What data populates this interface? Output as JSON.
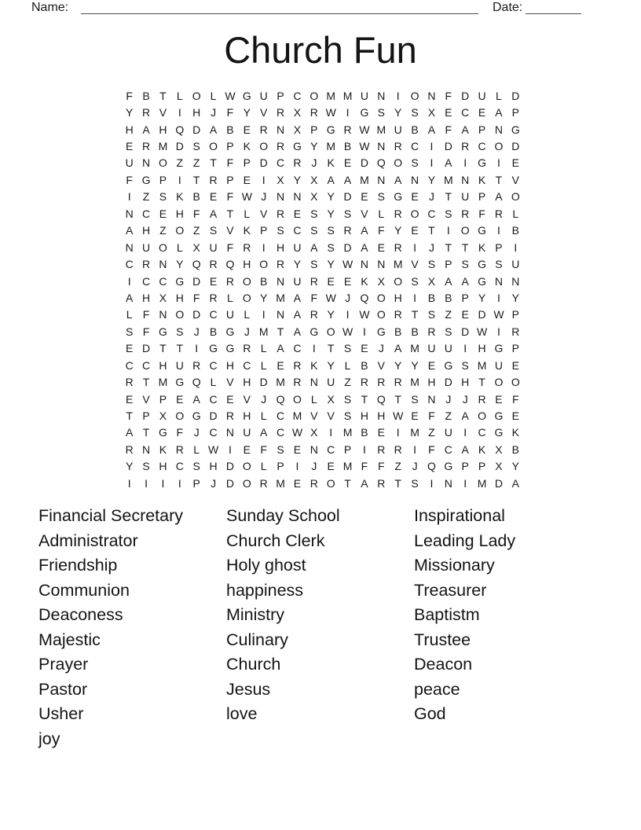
{
  "header": {
    "name_label": "Name:",
    "date_label": "Date:"
  },
  "title": "Church Fun",
  "colors": {
    "background": "#ffffff",
    "ink": "#1a1a1a",
    "blank_line": "#4a4a4a"
  },
  "grid": {
    "rows_count": 24,
    "cols_count": 24,
    "rows": [
      "FBTLOLWGUPCOMMUNIONFDULD",
      "YRVIHJFYVRXRWIGSYSXECEAP",
      "HAHQDABERNXPGRWMUBAFAPNG",
      "ERMDSOPKORGYMBWNRCIDRCOD",
      "UNOZZTFPDCRJKEDQOSIAIGIE",
      "FGPITRPEIXYXAAMNANYMNKTV",
      "IZSKBEFWJNNXYDESGEJTUPAO",
      "NCEHFATLVRESYSVLROCSRFRL",
      "AHZOZSVKPSCSSRAFYETIOGIB",
      "NUOLXUFRIHUASDAERIJTTKPI",
      "CRNYQRQHORYSYWNNMVSPSGSU",
      "ICCGDEROBNUREEKXOSXAAGNN",
      "AHXHFRLOYMAFWJQOHIBBPYIY",
      "LFNODCULINARYIWORTSZEDWP",
      "SFGSJBGJMTAGOWIGBBRSDWIR",
      "EDTTIGGRLACITSEJAMUUIHGP",
      "CCHURCHCLERKYLBVYYEGSMUE",
      "RTMGQLVHDMRNUZRRRMHDHTOO",
      "EVPEACEVJQOLXSTQTSNJJREF",
      "TPXOGDRHLCMVVSHHWEFZAOGE",
      "ATGFJCNUACWXIMBEIMZUICGK",
      "RNKRLWIEFSENCPIRRIFCAKXB",
      "YSHCSHDOLPIJEMFFZJQGPPXY",
      "IIIIPJDORMEROTARTSINIMDA"
    ]
  },
  "word_list": {
    "columns": [
      [
        "Financial Secretary",
        "Administrator",
        "Friendship",
        "Communion",
        "Deaconess",
        "Majestic",
        "Prayer",
        "Pastor",
        "Usher",
        "joy"
      ],
      [
        "Sunday School",
        "Church Clerk",
        "Holy ghost",
        "happiness",
        "Ministry",
        "Culinary",
        "Church",
        "Jesus",
        "love"
      ],
      [
        "Inspirational",
        "Leading Lady",
        "Missionary",
        "Treasurer",
        "Baptistm",
        "Trustee",
        "Deacon",
        "peace",
        "God"
      ]
    ]
  }
}
